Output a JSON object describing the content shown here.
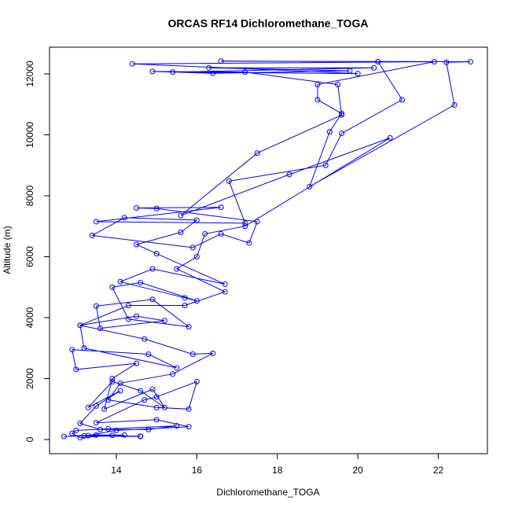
{
  "chart_data": {
    "type": "line",
    "title": "ORCAS RF14 Dichloromethane_TOGA",
    "xlabel": "Dichloromethane_TOGA",
    "ylabel": "Altitude (m)",
    "color": "#0000ff",
    "markers": "open-circle",
    "xlim": [
      12.34,
      23.22
    ],
    "ylim": [
      -464,
      12877
    ],
    "xticks": [
      14,
      16,
      18,
      20,
      22
    ],
    "yticks": [
      0,
      2000,
      4000,
      6000,
      8000,
      10000,
      12000
    ],
    "x": [
      14.6,
      13.2,
      12.7,
      13.5,
      14.2,
      13.9,
      13.1,
      12.9,
      13.0,
      13.8,
      15.5,
      14.8,
      13.6,
      13.1,
      13.5,
      14.1,
      13.3,
      13.9,
      14.6,
      15.2,
      14.9,
      13.7,
      13.9,
      14.5,
      13.0,
      12.9,
      14.8,
      15.5,
      13.2,
      13.1,
      14.5,
      15.2,
      13.6,
      13.5,
      14.9,
      15.8,
      14.3,
      13.9,
      14.6,
      16.0,
      15.7,
      14.1,
      14.9,
      16.7,
      15.0,
      14.5,
      15.6,
      16.0,
      14.2,
      13.4,
      15.9,
      16.6,
      17.3,
      17.5,
      15.0,
      14.5,
      16.6,
      13.5,
      17.2,
      16.8,
      19.2,
      19.6,
      21.1,
      20.5,
      16.6,
      22.8,
      22.2,
      22.4,
      18.8,
      19.3,
      19.6,
      19.0,
      19.0,
      21.9,
      14.4,
      20.0,
      15.4,
      20.4,
      16.3,
      19.8,
      16.4,
      14.9,
      17.2,
      19.5,
      19.6,
      17.5,
      15.6,
      18.3,
      20.8,
      17.2,
      16.2,
      16.0,
      15.5,
      16.7,
      15.7,
      14.3,
      13.1,
      14.7,
      15.9,
      16.4,
      15.4,
      14.1,
      13.8,
      15.0,
      15.8,
      16.0,
      15.0,
      14.7,
      13.5,
      15.0,
      15.8,
      14.0,
      13.3,
      14.6
    ],
    "values": [
      100,
      120,
      100,
      150,
      150,
      140,
      60,
      200,
      300,
      350,
      450,
      330,
      330,
      530,
      1100,
      1600,
      1050,
      1900,
      1600,
      1050,
      1650,
      1000,
      2000,
      2500,
      2300,
      2950,
      2800,
      2350,
      3000,
      3750,
      4050,
      3900,
      3650,
      4380,
      4600,
      3700,
      3950,
      5000,
      5150,
      4550,
      4650,
      5180,
      5600,
      5100,
      6100,
      6400,
      6800,
      7200,
      7280,
      6700,
      6300,
      6750,
      6450,
      7150,
      7580,
      7600,
      7620,
      7150,
      7100,
      8480,
      9000,
      10050,
      11150,
      12400,
      12420,
      12400,
      12380,
      10980,
      8300,
      10100,
      10700,
      11150,
      11650,
      12400,
      12330,
      12010,
      12060,
      12200,
      12200,
      12100,
      12020,
      12080,
      12060,
      11650,
      10650,
      9400,
      7350,
      8700,
      9900,
      7000,
      6750,
      6000,
      5600,
      4850,
      4400,
      4400,
      3750,
      3300,
      2800,
      2830,
      2150,
      1850,
      1300,
      1050,
      1000,
      1900,
      1400,
      1300,
      550,
      650,
      420,
      300,
      130,
      110
    ]
  }
}
